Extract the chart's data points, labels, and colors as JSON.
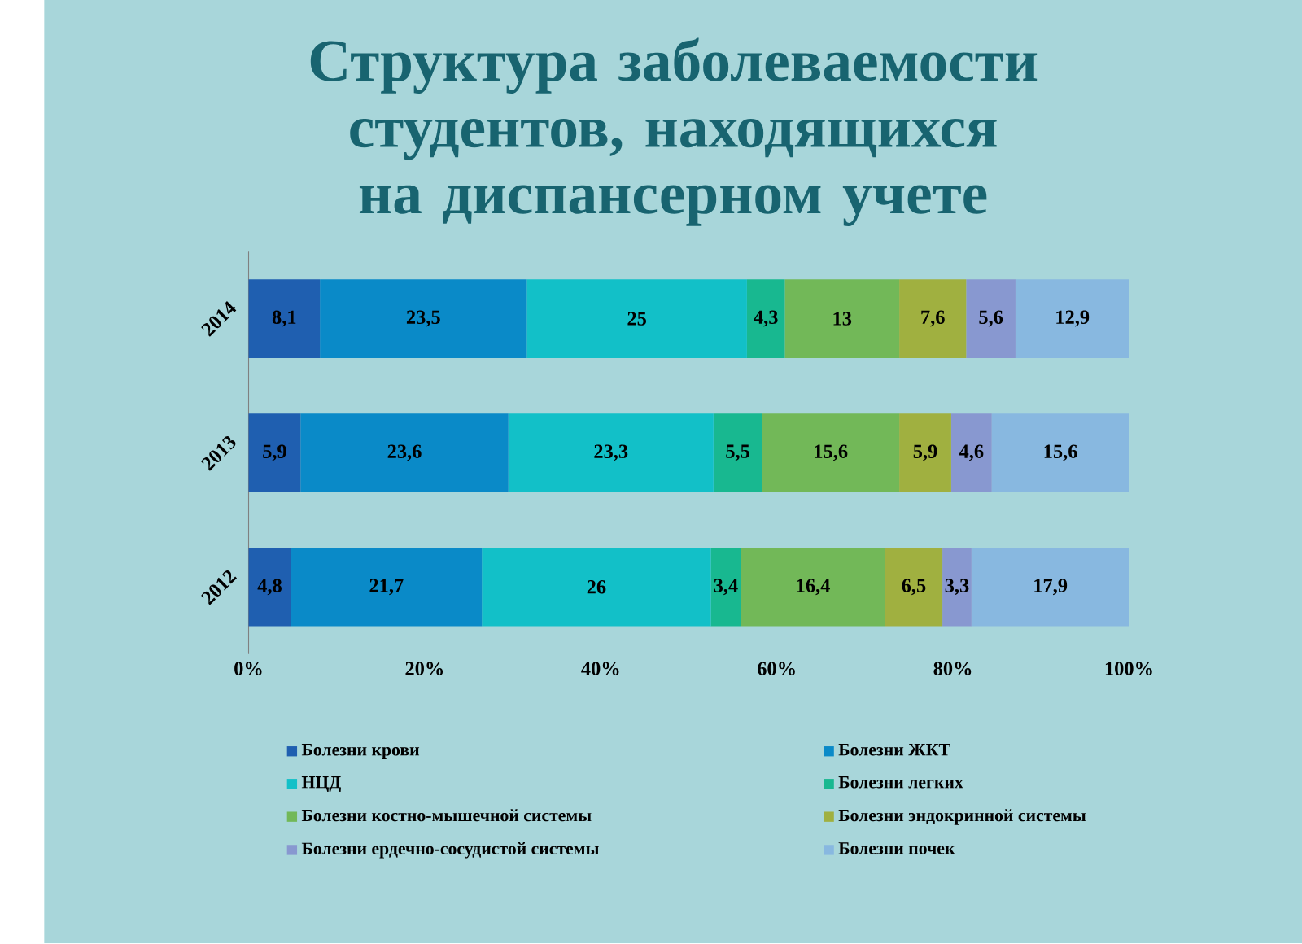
{
  "chart_data": {
    "type": "bar",
    "orientation": "horizontal",
    "stacked": true,
    "title": "Структура заболеваемости студентов, находящихся на диспансерном учете",
    "categories": [
      "2014",
      "2013",
      "2012"
    ],
    "series": [
      {
        "name": "Болезни крови",
        "color": "#1f5fb0",
        "values": [
          8.1,
          5.9,
          4.8
        ],
        "value_labels": [
          "8,1",
          "5,9",
          "4,8"
        ]
      },
      {
        "name": "Болезни ЖКТ",
        "color": "#0a8ac8",
        "values": [
          23.5,
          23.6,
          21.7
        ],
        "value_labels": [
          "23,5",
          "23,6",
          "21,7"
        ]
      },
      {
        "name": "НЦД",
        "color": "#12c0c8",
        "values": [
          25,
          23.3,
          26
        ],
        "value_labels": [
          "25",
          "23,3",
          "26"
        ]
      },
      {
        "name": "Болезни легких",
        "color": "#18b890",
        "values": [
          4.3,
          5.5,
          3.4
        ],
        "value_labels": [
          "4,3",
          "5,5",
          "3,4"
        ]
      },
      {
        "name": "Болезни костно-мышечной системы",
        "color": "#72b858",
        "values": [
          13,
          15.6,
          16.4
        ],
        "value_labels": [
          "13",
          "15,6",
          "16,4"
        ]
      },
      {
        "name": "Болезни эндокринной системы",
        "color": "#a0b040",
        "values": [
          7.6,
          5.9,
          6.5
        ],
        "value_labels": [
          "7,6",
          "5,9",
          "6,5"
        ]
      },
      {
        "name": "Болезни ердечно-сосудистой системы",
        "color": "#8898d0",
        "values": [
          5.6,
          4.6,
          3.3
        ],
        "value_labels": [
          "5,6",
          "4,6",
          "3,3"
        ]
      },
      {
        "name": "Болезни почек",
        "color": "#88b8e0",
        "values": [
          12.9,
          15.6,
          17.9
        ],
        "value_labels": [
          "12,9",
          "15,6",
          "17,9"
        ]
      }
    ],
    "xlim": [
      0,
      100
    ],
    "xticks": [
      {
        "value": 0,
        "label": "0%"
      },
      {
        "value": 20,
        "label": "20%"
      },
      {
        "value": 40,
        "label": "40%"
      },
      {
        "value": 60,
        "label": "60%"
      },
      {
        "value": 80,
        "label": "80%"
      },
      {
        "value": 100,
        "label": "100%"
      }
    ],
    "legend": "bottom"
  }
}
